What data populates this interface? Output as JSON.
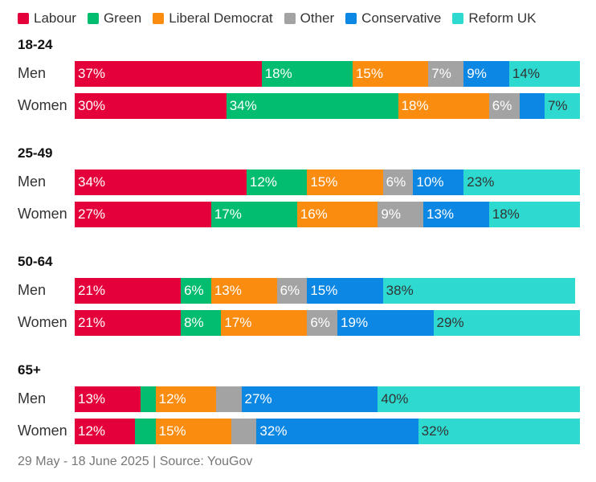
{
  "chart_data": {
    "type": "bar",
    "stacked": true,
    "orientation": "horizontal",
    "xlim": [
      0,
      100
    ],
    "unit": "%",
    "legend_position": "top",
    "parties": [
      {
        "name": "Labour",
        "color": "#e4003b",
        "text": "#ffffff"
      },
      {
        "name": "Green",
        "color": "#02bd6f",
        "text": "#ffffff"
      },
      {
        "name": "Liberal Democrat",
        "color": "#fa8c0f",
        "text": "#ffffff"
      },
      {
        "name": "Other",
        "color": "#a3a3a3",
        "text": "#ffffff"
      },
      {
        "name": "Conservative",
        "color": "#0c87e3",
        "text": "#ffffff"
      },
      {
        "name": "Reform UK",
        "color": "#2ed9cf",
        "text": "#333333"
      }
    ],
    "groups": [
      {
        "title": "18-24",
        "rows": [
          {
            "label": "Men",
            "values": [
              37,
              18,
              15,
              7,
              9,
              14
            ],
            "shown": [
              true,
              true,
              true,
              true,
              true,
              true
            ]
          },
          {
            "label": "Women",
            "values": [
              30,
              34,
              18,
              6,
              5,
              7
            ],
            "shown": [
              true,
              true,
              true,
              true,
              false,
              true
            ]
          }
        ]
      },
      {
        "title": "25-49",
        "rows": [
          {
            "label": "Men",
            "values": [
              34,
              12,
              15,
              6,
              10,
              23
            ],
            "shown": [
              true,
              true,
              true,
              true,
              true,
              true
            ]
          },
          {
            "label": "Women",
            "values": [
              27,
              17,
              16,
              9,
              13,
              18
            ],
            "shown": [
              true,
              true,
              true,
              true,
              true,
              true
            ]
          }
        ]
      },
      {
        "title": "50-64",
        "rows": [
          {
            "label": "Men",
            "values": [
              21,
              6,
              13,
              6,
              15,
              38
            ],
            "shown": [
              true,
              true,
              true,
              true,
              true,
              true
            ]
          },
          {
            "label": "Women",
            "values": [
              21,
              8,
              17,
              6,
              19,
              29
            ],
            "shown": [
              true,
              true,
              true,
              true,
              true,
              true
            ]
          }
        ]
      },
      {
        "title": "65+",
        "rows": [
          {
            "label": "Men",
            "values": [
              13,
              3,
              12,
              5,
              27,
              40
            ],
            "shown": [
              true,
              false,
              true,
              false,
              true,
              true
            ]
          },
          {
            "label": "Women",
            "values": [
              12,
              4,
              15,
              5,
              32,
              32
            ],
            "shown": [
              true,
              false,
              true,
              false,
              true,
              true
            ]
          }
        ]
      }
    ]
  },
  "footer": "29 May - 18 June 2025 | Source: YouGov"
}
